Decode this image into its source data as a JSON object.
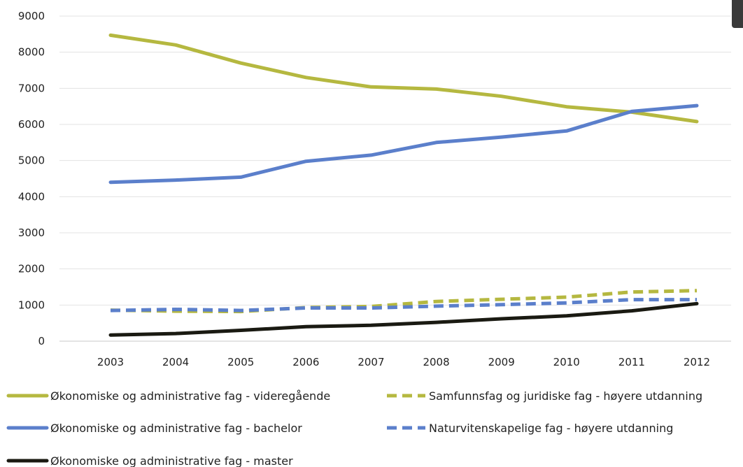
{
  "chart_data": {
    "type": "line",
    "x": [
      "2003",
      "2004",
      "2005",
      "2006",
      "2007",
      "2008",
      "2009",
      "2010",
      "2011",
      "2012"
    ],
    "ylim": [
      0,
      9000
    ],
    "yticks": [
      0,
      1000,
      2000,
      3000,
      4000,
      5000,
      6000,
      7000,
      8000,
      9000
    ],
    "grid": true,
    "legend_position": "bottom",
    "series": [
      {
        "name": "Økonomiske og administrative fag - videregående",
        "color": "#b5b840",
        "dash": "solid",
        "values": [
          8470,
          8200,
          7700,
          7300,
          7040,
          6980,
          6780,
          6490,
          6340,
          6080
        ]
      },
      {
        "name": "Økonomiske og administrative fag - bachelor",
        "color": "#5b7fcb",
        "dash": "solid",
        "values": [
          4400,
          4460,
          4540,
          4980,
          5150,
          5500,
          5650,
          5820,
          6360,
          6520
        ]
      },
      {
        "name": "Økonomiske og administrative fag - master",
        "color": "#1a1a12",
        "dash": "solid",
        "values": [
          170,
          210,
          300,
          400,
          440,
          520,
          620,
          700,
          840,
          1040
        ]
      },
      {
        "name": "Samfunnsfag og juridiske fag - høyere utdanning",
        "color": "#b5b840",
        "dash": "dashed",
        "values": [
          860,
          830,
          820,
          930,
          960,
          1100,
          1160,
          1220,
          1360,
          1400
        ]
      },
      {
        "name": "Naturvitenskapelige fag - høyere utdanning",
        "color": "#5b7fcb",
        "dash": "dashed",
        "values": [
          850,
          880,
          850,
          920,
          920,
          970,
          1010,
          1060,
          1150,
          1150
        ]
      }
    ],
    "legend_order": [
      0,
      3,
      1,
      4,
      2
    ]
  },
  "ui": {
    "corner_tab": "dark-corner-tab"
  }
}
